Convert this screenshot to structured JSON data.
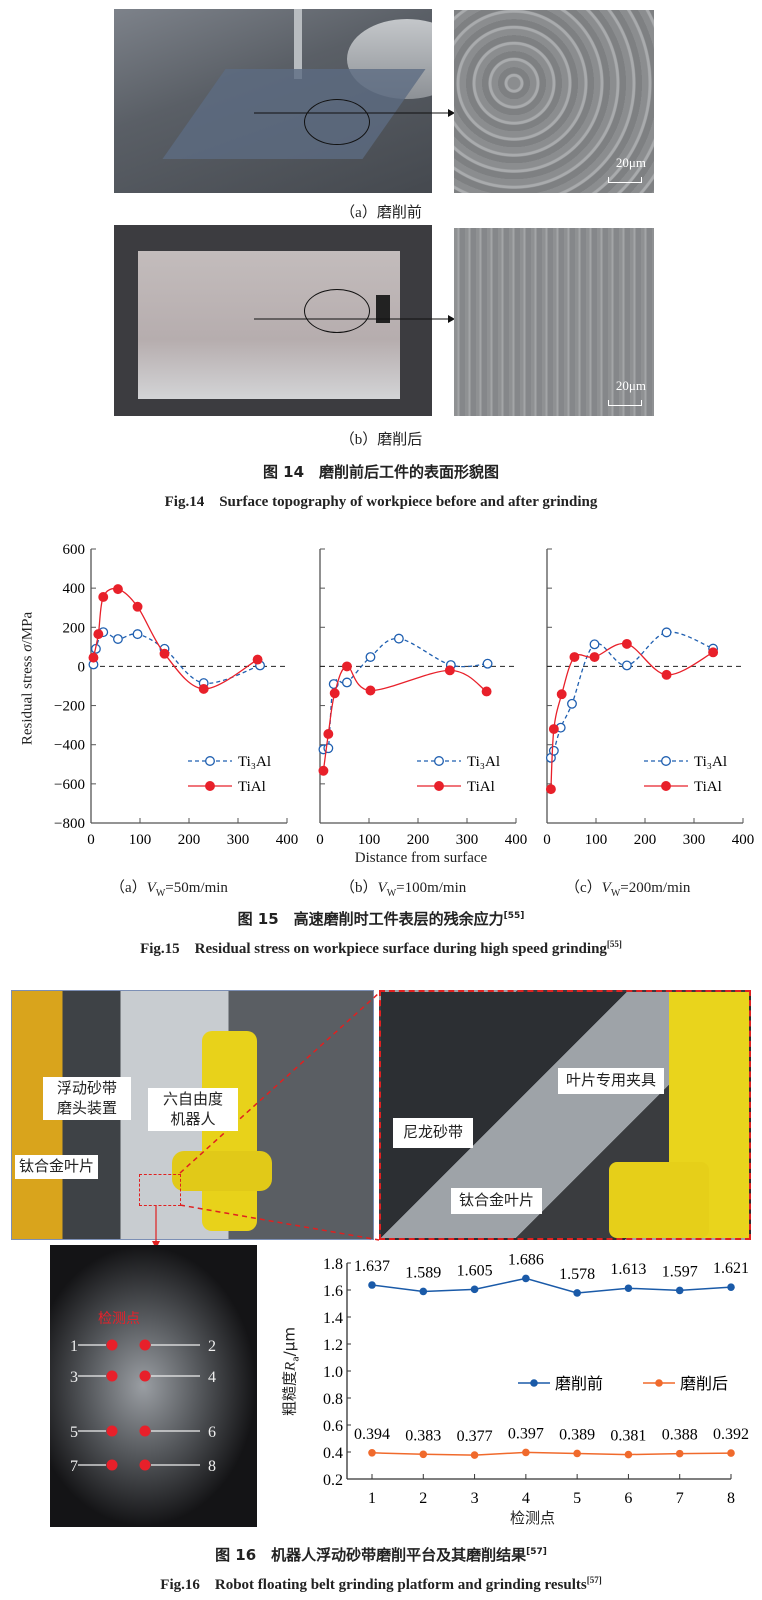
{
  "fig14": {
    "sub_a": "（a）磨削前",
    "sub_b": "（b）磨削后",
    "scale_bar": "20μm",
    "caption_cn": "图 14　磨削前后工件的表面形貌图",
    "caption_en": "Fig.14　Surface topography of workpiece before and after grinding"
  },
  "fig15": {
    "ylabel_pre": "Residual stress ",
    "ylabel_var": "σ",
    "ylabel_post": "/MPa",
    "xlabel": "Distance from surface",
    "subs": [
      {
        "prefix": "（a）",
        "var": "V",
        "sub": "W",
        "rest": "=50m/min"
      },
      {
        "prefix": "（b）",
        "var": "V",
        "sub": "W",
        "rest": "=100m/min"
      },
      {
        "prefix": "（c）",
        "var": "V",
        "sub": "W",
        "rest": "=200m/min"
      }
    ],
    "caption_cn": "图 15　高速磨削时工件表层的残余应力",
    "caption_cn_ref": "[55]",
    "caption_en": "Fig.15　Residual stress on workpiece surface during high speed grinding",
    "caption_en_ref": "[55]"
  },
  "fig16": {
    "labels": {
      "belt_head": "浮动砂带\n磨头装置",
      "robot": "六自由度\n机器人",
      "blade_left": "钛合金叶片",
      "nylon_belt": "尼龙砂带",
      "fixture": "叶片专用夹具",
      "blade_right": "钛合金叶片",
      "points_title": "检测点"
    },
    "point_numbers": [
      "1",
      "2",
      "3",
      "4",
      "5",
      "6",
      "7",
      "8"
    ],
    "caption_cn": "图 16　机器人浮动砂带磨削平台及其磨削结果",
    "caption_cn_ref": "[57]",
    "caption_en": "Fig.16　Robot floating belt grinding platform and grinding results",
    "caption_en_ref": "[57]"
  },
  "chart_data": [
    {
      "type": "line",
      "panel": "a",
      "xlim": [
        0,
        400
      ],
      "ylim": [
        -800,
        600
      ],
      "xticks": [
        0,
        100,
        200,
        300,
        400
      ],
      "yticks": [
        600,
        400,
        200,
        0,
        -200,
        -400,
        -600,
        -800
      ],
      "reference_line": 0,
      "legend": "bottom-right",
      "series": [
        {
          "name": "Ti₃Al",
          "color": "#1f5fb0",
          "style": "dashed-open-circle",
          "x": [
            5,
            10,
            25,
            55,
            95,
            150,
            230,
            345
          ],
          "y": [
            10,
            90,
            175,
            140,
            165,
            90,
            -85,
            5
          ]
        },
        {
          "name": "TiAl",
          "color": "#e8202a",
          "style": "solid-filled-circle",
          "x": [
            5,
            15,
            25,
            55,
            95,
            150,
            230,
            340
          ],
          "y": [
            45,
            165,
            355,
            395,
            305,
            65,
            -115,
            35
          ]
        }
      ]
    },
    {
      "type": "line",
      "panel": "b",
      "xlim": [
        0,
        400
      ],
      "ylim": [
        -800,
        600
      ],
      "xticks": [
        0,
        100,
        200,
        300,
        400
      ],
      "yticks": [
        600,
        400,
        200,
        0,
        -200,
        -400,
        -600,
        -800
      ],
      "reference_line": 0,
      "legend": "bottom-right",
      "series": [
        {
          "name": "Ti₃Al",
          "color": "#1f5fb0",
          "style": "dashed-open-circle",
          "x": [
            7,
            17,
            28,
            55,
            103,
            161,
            267,
            342
          ],
          "y": [
            -424,
            -418,
            -90,
            -82,
            48,
            142,
            7,
            14
          ]
        },
        {
          "name": "TiAl",
          "color": "#e8202a",
          "style": "solid-filled-circle",
          "x": [
            7,
            17,
            30,
            55,
            103,
            265,
            340
          ],
          "y": [
            -533,
            -345,
            -137,
            0,
            -123,
            -20,
            -128
          ]
        }
      ]
    },
    {
      "type": "line",
      "panel": "c",
      "xlim": [
        0,
        400
      ],
      "ylim": [
        -800,
        600
      ],
      "xticks": [
        0,
        100,
        200,
        300,
        400
      ],
      "yticks": [
        600,
        400,
        200,
        0,
        -200,
        -400,
        -600,
        -800
      ],
      "reference_line": 0,
      "legend": "bottom-right",
      "series": [
        {
          "name": "Ti₃Al",
          "color": "#1f5fb0",
          "style": "dashed-open-circle",
          "x": [
            8,
            14,
            28,
            51,
            97,
            163,
            244,
            339
          ],
          "y": [
            -467,
            -431,
            -313,
            -191,
            113,
            5,
            174,
            91
          ]
        },
        {
          "name": "TiAl",
          "color": "#e8202a",
          "style": "solid-filled-circle",
          "x": [
            8,
            14,
            30,
            56,
            97,
            163,
            244,
            339
          ],
          "y": [
            -627,
            -320,
            -142,
            48,
            48,
            115,
            -43,
            72
          ]
        }
      ]
    },
    {
      "type": "line",
      "panel": "fig16",
      "xlabel": "检测点",
      "ylabel_pre": "粗糙度",
      "ylabel_var": "R",
      "ylabel_sub": "a",
      "ylabel_post": "/μm",
      "categories": [
        "1",
        "2",
        "3",
        "4",
        "5",
        "6",
        "7",
        "8"
      ],
      "ylim": [
        0.2,
        1.8
      ],
      "yticks": [
        "1.8",
        "1.6",
        "1.4",
        "1.2",
        "1.0",
        "0.8",
        "0.6",
        "0.4",
        "0.2"
      ],
      "legend": "center-right",
      "series": [
        {
          "name": "磨削前",
          "color": "#1a5aa8",
          "values": [
            1.637,
            1.589,
            1.605,
            1.686,
            1.578,
            1.613,
            1.597,
            1.621
          ],
          "labels": [
            "1.637",
            "1.589",
            "1.605",
            "1.686",
            "1.578",
            "1.613",
            "1.597",
            "1.621"
          ]
        },
        {
          "name": "磨削后",
          "color": "#f06a2c",
          "values": [
            0.394,
            0.383,
            0.377,
            0.397,
            0.389,
            0.381,
            0.388,
            0.392
          ],
          "labels": [
            "0.394",
            "0.383",
            "0.377",
            "0.397",
            "0.389",
            "0.381",
            "0.388",
            "0.392"
          ]
        }
      ]
    }
  ]
}
